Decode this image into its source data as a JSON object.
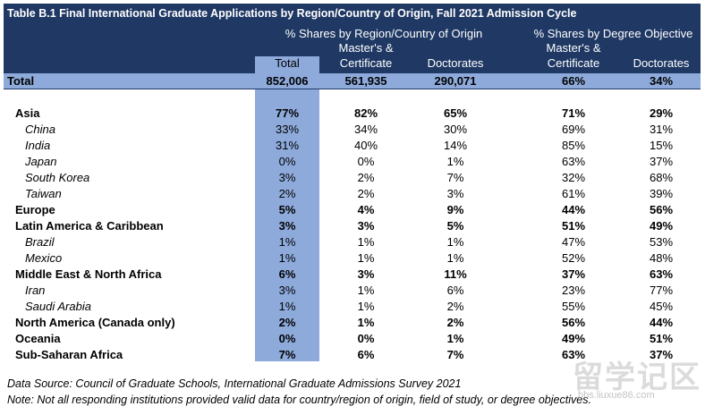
{
  "title": "Table B.1 Final International Graduate Applications by Region/Country of Origin, Fall 2021 Admission Cycle",
  "header": {
    "group1": "% Shares by Region/Country of Origin",
    "group2": "% Shares by Degree Objective",
    "total": "Total",
    "masters_line1": "Master's &",
    "masters_line2": "Certificate",
    "doctorates": "Doctorates"
  },
  "total_row": {
    "label": "Total",
    "values": [
      "852,006",
      "561,935",
      "290,071",
      "66%",
      "34%"
    ]
  },
  "rows": [
    {
      "label": "Asia",
      "type": "region",
      "values": [
        "77%",
        "82%",
        "65%",
        "71%",
        "29%"
      ]
    },
    {
      "label": "China",
      "type": "country",
      "values": [
        "33%",
        "34%",
        "30%",
        "69%",
        "31%"
      ]
    },
    {
      "label": "India",
      "type": "country",
      "values": [
        "31%",
        "40%",
        "14%",
        "85%",
        "15%"
      ]
    },
    {
      "label": "Japan",
      "type": "country",
      "values": [
        "0%",
        "0%",
        "1%",
        "63%",
        "37%"
      ]
    },
    {
      "label": "South Korea",
      "type": "country",
      "values": [
        "3%",
        "2%",
        "7%",
        "32%",
        "68%"
      ]
    },
    {
      "label": "Taiwan",
      "type": "country",
      "values": [
        "2%",
        "2%",
        "3%",
        "61%",
        "39%"
      ]
    },
    {
      "label": "Europe",
      "type": "region",
      "values": [
        "5%",
        "4%",
        "9%",
        "44%",
        "56%"
      ]
    },
    {
      "label": "Latin America & Caribbean",
      "type": "region",
      "values": [
        "3%",
        "3%",
        "5%",
        "51%",
        "49%"
      ]
    },
    {
      "label": "Brazil",
      "type": "country",
      "values": [
        "1%",
        "1%",
        "1%",
        "47%",
        "53%"
      ]
    },
    {
      "label": "Mexico",
      "type": "country",
      "values": [
        "1%",
        "1%",
        "1%",
        "52%",
        "48%"
      ]
    },
    {
      "label": "Middle East & North Africa",
      "type": "region",
      "values": [
        "6%",
        "3%",
        "11%",
        "37%",
        "63%"
      ]
    },
    {
      "label": "Iran",
      "type": "country",
      "values": [
        "3%",
        "1%",
        "6%",
        "23%",
        "77%"
      ]
    },
    {
      "label": "Saudi Arabia",
      "type": "country",
      "values": [
        "1%",
        "1%",
        "2%",
        "55%",
        "45%"
      ]
    },
    {
      "label": "North America (Canada only)",
      "type": "region",
      "values": [
        "2%",
        "1%",
        "2%",
        "56%",
        "44%"
      ]
    },
    {
      "label": "Oceania",
      "type": "region",
      "values": [
        "0%",
        "0%",
        "1%",
        "49%",
        "51%"
      ]
    },
    {
      "label": "Sub-Saharan Africa",
      "type": "region",
      "values": [
        "7%",
        "6%",
        "7%",
        "63%",
        "37%"
      ]
    }
  ],
  "footnotes": {
    "source": "Data Source: Council of Graduate Schools, International Graduate Admissions Survey 2021",
    "note": "Note: Not all responding institutions provided valid data for country/region of origin, field of study, or degree objectives."
  },
  "watermark": {
    "text": "留学记区",
    "url": "bbs.liuxue86.com"
  },
  "colors": {
    "header_bg": "#1f3864",
    "band_bg": "#8eaadb"
  }
}
